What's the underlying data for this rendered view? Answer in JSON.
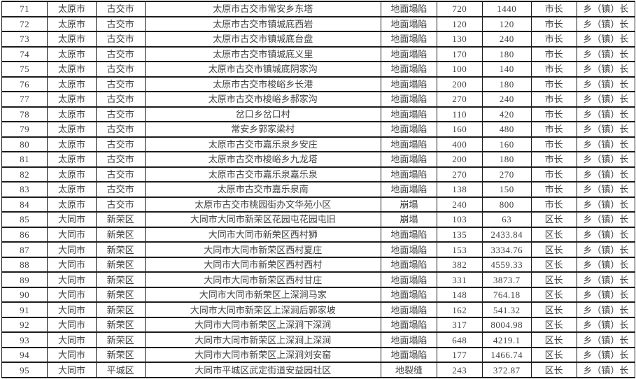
{
  "table": {
    "cell_names": [
      "row-number-cell",
      "city-cell",
      "district-cell",
      "hazard-site-name-cell",
      "hazard-type-cell",
      "threatened-people-cell",
      "threatened-property-cell",
      "city-level-leader-cell",
      "township-level-leader-cell"
    ],
    "rows": [
      [
        "71",
        "太原市",
        "古交市",
        "太原市古交市常安乡东塔",
        "地面塌陷",
        "720",
        "1440",
        "市长",
        "乡（镇）长"
      ],
      [
        "72",
        "太原市",
        "古交市",
        "太原市古交市镇城底西岩",
        "地面塌陷",
        "120",
        "120",
        "市长",
        "乡（镇）长"
      ],
      [
        "73",
        "太原市",
        "古交市",
        "太原市古交市镇城底台盘",
        "地面塌陷",
        "130",
        "240",
        "市长",
        "乡（镇）长"
      ],
      [
        "74",
        "太原市",
        "古交市",
        "太原市古交市镇城底义里",
        "地面塌陷",
        "170",
        "180",
        "市长",
        "乡（镇）长"
      ],
      [
        "75",
        "太原市",
        "古交市",
        "太原市古交市镇城底阴家沟",
        "地面塌陷",
        "100",
        "140",
        "市长",
        "乡（镇）长"
      ],
      [
        "76",
        "太原市",
        "古交市",
        "太原市古交市梭峪乡长港",
        "地面塌陷",
        "200",
        "180",
        "市长",
        "乡（镇）长"
      ],
      [
        "77",
        "太原市",
        "古交市",
        "太原市古交市梭峪乡郝家沟",
        "地面塌陷",
        "270",
        "240",
        "市长",
        "乡（镇）长"
      ],
      [
        "78",
        "太原市",
        "古交市",
        "岔口乡岔口村",
        "地面塌陷",
        "110",
        "420",
        "市长",
        "乡（镇）长"
      ],
      [
        "79",
        "太原市",
        "古交市",
        "常安乡郭家梁村",
        "地面塌陷",
        "160",
        "480",
        "市长",
        "乡（镇）长"
      ],
      [
        "80",
        "太原市",
        "古交市",
        "太原市古交市嘉乐泉乡安庄",
        "地面塌陷",
        "400",
        "160",
        "市长",
        "乡（镇）长"
      ],
      [
        "81",
        "太原市",
        "古交市",
        "太原市古交市梭峪乡九龙塔",
        "地面塌陷",
        "200",
        "180",
        "市长",
        "乡（镇）长"
      ],
      [
        "82",
        "太原市",
        "古交市",
        "太原市古交市嘉乐泉嘉乐泉",
        "地面塌陷",
        "270",
        "270",
        "市长",
        "乡（镇）长"
      ],
      [
        "83",
        "太原市",
        "古交市",
        "太原市古交市嘉乐泉南",
        "地面塌陷",
        "138",
        "150",
        "市长",
        "乡（镇）长"
      ],
      [
        "84",
        "太原市",
        "古交市",
        "太原市古交市桃园街办文华苑小区",
        "崩塌",
        "240",
        "800",
        "市长",
        "乡（镇）长"
      ],
      [
        "85",
        "大同市",
        "新荣区",
        "大同市大同市新荣区花园屯花园屯旧",
        "崩塌",
        "103",
        "63",
        "区长",
        "乡（镇）长"
      ],
      [
        "86",
        "大同市",
        "新荣区",
        "大同市大同市新荣区西村狮",
        "地面塌陷",
        "135",
        "2433.84",
        "区长",
        "乡（镇）长"
      ],
      [
        "87",
        "大同市",
        "新荣区",
        "大同市大同市新荣区西村夏庄",
        "地面塌陷",
        "153",
        "3334.76",
        "区长",
        "乡（镇）长"
      ],
      [
        "88",
        "大同市",
        "新荣区",
        "大同市大同市新荣区西村西村",
        "地面塌陷",
        "382",
        "4559.33",
        "区长",
        "乡（镇）长"
      ],
      [
        "89",
        "大同市",
        "新荣区",
        "大同市大同市新荣区西村甘庄",
        "地面塌陷",
        "331",
        "3873.7",
        "区长",
        "乡（镇）长"
      ],
      [
        "90",
        "大同市",
        "新荣区",
        "大同市大同市新荣区上深涧马家",
        "地面塌陷",
        "148",
        "764.18",
        "区长",
        "乡（镇）长"
      ],
      [
        "91",
        "大同市",
        "新荣区",
        "大同市大同市新荣区上深涧后郭家坡",
        "地面塌陷",
        "162",
        "541.32",
        "区长",
        "乡（镇）长"
      ],
      [
        "92",
        "大同市",
        "新荣区",
        "大同市大同市新荣区上深涧下深涧",
        "地面塌陷",
        "317",
        "8004.98",
        "区长",
        "乡（镇）长"
      ],
      [
        "93",
        "大同市",
        "新荣区",
        "大同市大同市新荣区上深涧上深涧",
        "地面塌陷",
        "648",
        "4219.1",
        "区长",
        "乡（镇）长"
      ],
      [
        "94",
        "大同市",
        "新荣区",
        "大同市大同市新荣区上深涧刘安窑",
        "地面塌陷",
        "177",
        "1466.74",
        "区长",
        "乡（镇）长"
      ],
      [
        "95",
        "大同市",
        "平城区",
        "大同市平城区武定街道安益园社区",
        "地裂缝",
        "243",
        "372.87",
        "区长",
        "乡（镇）长"
      ]
    ],
    "colors": {
      "border": "#1c1c1c",
      "text": "#3f3f3f",
      "background": "#ffffff"
    }
  }
}
